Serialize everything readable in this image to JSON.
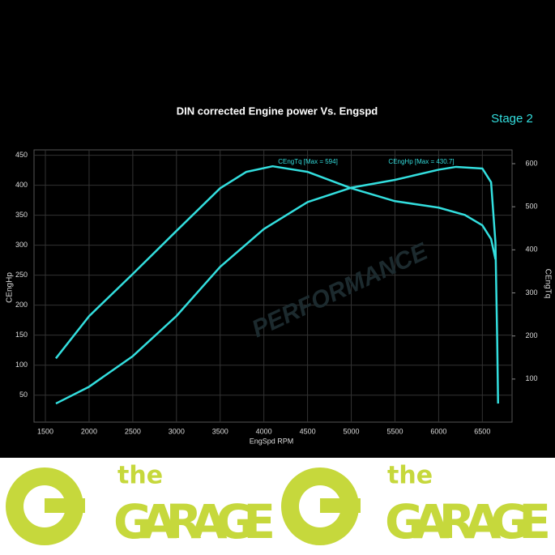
{
  "chart_data": {
    "type": "line",
    "title": "DIN corrected Engine power Vs. Engspd",
    "subtitle": "Stage 2",
    "x_label": "EngSpd RPM",
    "watermark": "PERFORMANCE",
    "annotations": [
      "CEngTq [Max = 594]",
      "CEngHp [Max = 430.7]"
    ],
    "xlim": [
      1370,
      6840
    ],
    "xticks": [
      1500,
      2000,
      2500,
      3000,
      3500,
      4000,
      4500,
      5000,
      5500,
      6000,
      6500
    ],
    "ylim": [
      5,
      459
    ],
    "yticks": [
      50,
      100,
      150,
      200,
      250,
      300,
      350,
      400,
      450
    ],
    "y2lim": [
      0,
      632
    ],
    "y2ticks": [
      100,
      200,
      300,
      400,
      500,
      600
    ],
    "grid": true,
    "series": [
      {
        "name": "CEngHp",
        "color": "#33dede",
        "axis": "y",
        "x": [
          1620,
          2000,
          2500,
          3000,
          3500,
          4000,
          4500,
          5000,
          5500,
          6000,
          6200,
          6500,
          6600,
          6650,
          6670,
          6680
        ],
        "values": [
          36,
          64,
          115,
          182,
          264,
          327,
          372,
          396,
          409,
          426,
          430.7,
          428,
          405,
          304,
          142,
          36
        ]
      },
      {
        "name": "CEngTq",
        "color": "#33dede",
        "axis": "y2",
        "x": [
          1620,
          2000,
          2500,
          3000,
          3500,
          3800,
          4100,
          4500,
          5000,
          5500,
          6000,
          6300,
          6500,
          6600,
          6650
        ],
        "values": [
          148,
          246,
          344,
          444,
          543,
          581,
          594,
          581,
          543,
          513,
          498,
          481,
          457,
          425,
          378
        ]
      }
    ]
  },
  "banner": {
    "small": "the",
    "big": "GARAGE"
  }
}
